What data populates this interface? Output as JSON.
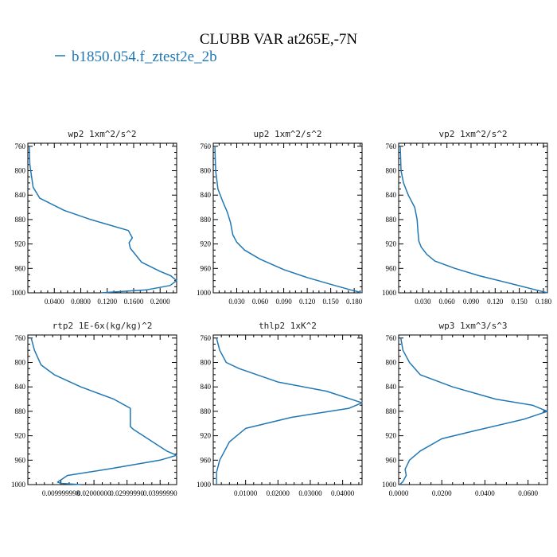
{
  "title": "CLUBB VAR at265E,-7N",
  "legend": {
    "label": "b1850.054.f_ztest2e_2b",
    "color": "#1f77b4"
  },
  "chart_data": [
    {
      "type": "line",
      "title": "wp2  1xm^2/s^2",
      "xlim": [
        0.0,
        0.225
      ],
      "ylim": [
        1000,
        755
      ],
      "y_inverted": true,
      "xticks": [
        0.04,
        0.08,
        0.12,
        0.16,
        0.2
      ],
      "xtick_labels": [
        "0.0400",
        "0.0800",
        "0.1200",
        "0.1600",
        "0.2000"
      ],
      "yticks": [
        760,
        800,
        840,
        880,
        920,
        960,
        1000
      ],
      "ytick_labels": [
        "760",
        "800",
        "840",
        "880",
        "920",
        "960",
        "1000"
      ],
      "series": [
        {
          "x": [
            0.002,
            0.003,
            0.008,
            0.018,
            0.055,
            0.095,
            0.152,
            0.158,
            0.153,
            0.155,
            0.172,
            0.2,
            0.216,
            0.225,
            0.215,
            0.18,
            0.11
          ],
          "y": [
            760,
            790,
            827,
            845,
            865,
            880,
            898,
            910,
            918,
            927,
            950,
            965,
            972,
            980,
            988,
            995,
            1000
          ]
        }
      ]
    },
    {
      "type": "line",
      "title": "up2  1xm^2/s^2",
      "xlim": [
        0.0,
        0.19
      ],
      "ylim": [
        1000,
        755
      ],
      "y_inverted": true,
      "xticks": [
        0.03,
        0.06,
        0.09,
        0.12,
        0.15,
        0.18
      ],
      "xtick_labels": [
        "0.030",
        "0.060",
        "0.090",
        "0.120",
        "0.150",
        "0.180"
      ],
      "yticks": [
        760,
        800,
        840,
        880,
        920,
        960,
        1000
      ],
      "ytick_labels": [
        "760",
        "800",
        "840",
        "880",
        "920",
        "960",
        "1000"
      ],
      "series": [
        {
          "x": [
            0.002,
            0.003,
            0.006,
            0.012,
            0.018,
            0.022,
            0.025,
            0.03,
            0.04,
            0.06,
            0.09,
            0.12,
            0.15,
            0.175,
            0.19
          ],
          "y": [
            760,
            800,
            830,
            850,
            868,
            885,
            905,
            917,
            930,
            945,
            962,
            975,
            986,
            995,
            1000
          ]
        }
      ]
    },
    {
      "type": "line",
      "title": "vp2  1xm^2/s^2",
      "xlim": [
        0.0,
        0.185
      ],
      "ylim": [
        1000,
        755
      ],
      "y_inverted": true,
      "xticks": [
        0.03,
        0.06,
        0.09,
        0.12,
        0.15,
        0.18
      ],
      "xtick_labels": [
        "0.030",
        "0.060",
        "0.090",
        "0.120",
        "0.150",
        "0.180"
      ],
      "yticks": [
        760,
        800,
        840,
        880,
        920,
        960,
        1000
      ],
      "ytick_labels": [
        "760",
        "800",
        "840",
        "880",
        "920",
        "960",
        "1000"
      ],
      "series": [
        {
          "x": [
            0.002,
            0.003,
            0.006,
            0.012,
            0.02,
            0.023,
            0.024,
            0.025,
            0.028,
            0.035,
            0.045,
            0.07,
            0.1,
            0.14,
            0.17,
            0.185
          ],
          "y": [
            760,
            800,
            820,
            840,
            860,
            880,
            900,
            915,
            925,
            937,
            948,
            960,
            972,
            985,
            995,
            1000
          ]
        }
      ]
    },
    {
      "type": "line",
      "title": "rtp2  1E-6x(kg/kg)^2",
      "xlim": [
        0.0,
        0.045
      ],
      "ylim": [
        1000,
        755
      ],
      "y_inverted": true,
      "xticks": [
        0.01,
        0.02,
        0.03,
        0.04
      ],
      "xtick_labels": [
        "0.009999998",
        "0.02000000",
        "0.02999990",
        "0.03999990"
      ],
      "yticks": [
        760,
        800,
        840,
        880,
        920,
        960,
        1000
      ],
      "ytick_labels": [
        "760",
        "800",
        "840",
        "880",
        "920",
        "960",
        "1000"
      ],
      "series": [
        {
          "x": [
            0.001,
            0.002,
            0.004,
            0.008,
            0.016,
            0.026,
            0.031,
            0.031,
            0.032,
            0.042,
            0.045,
            0.04,
            0.025,
            0.012,
            0.009,
            0.01,
            0.016
          ],
          "y": [
            760,
            780,
            804,
            820,
            840,
            860,
            875,
            905,
            910,
            945,
            952,
            960,
            974,
            985,
            996,
            998,
            1000
          ]
        }
      ]
    },
    {
      "type": "line",
      "title": "thlp2  1xK^2",
      "xlim": [
        0.0,
        0.046
      ],
      "ylim": [
        1000,
        755
      ],
      "y_inverted": true,
      "xticks": [
        0.01,
        0.02,
        0.03,
        0.04
      ],
      "xtick_labels": [
        "0.01000",
        "0.02000",
        "0.03000",
        "0.04000"
      ],
      "yticks": [
        760,
        800,
        840,
        880,
        920,
        960,
        1000
      ],
      "ytick_labels": [
        "760",
        "800",
        "840",
        "880",
        "920",
        "960",
        "1000"
      ],
      "series": [
        {
          "x": [
            0.001,
            0.002,
            0.004,
            0.008,
            0.02,
            0.035,
            0.046,
            0.042,
            0.024,
            0.01,
            0.005,
            0.002,
            0.001,
            0.001,
            0.001
          ],
          "y": [
            760,
            780,
            800,
            810,
            832,
            847,
            866,
            875,
            890,
            908,
            930,
            960,
            980,
            995,
            1000
          ]
        }
      ]
    },
    {
      "type": "line",
      "title": "wp3  1xm^3/s^3",
      "xlim": [
        0.0,
        0.069
      ],
      "ylim": [
        1000,
        755
      ],
      "y_inverted": true,
      "xticks": [
        0.0,
        0.02,
        0.04,
        0.06
      ],
      "xtick_labels": [
        "0.0000",
        "0.0200",
        "0.0400",
        "0.0600"
      ],
      "yticks": [
        760,
        800,
        840,
        880,
        920,
        960,
        1000
      ],
      "ytick_labels": [
        "760",
        "800",
        "840",
        "880",
        "920",
        "960",
        "1000"
      ],
      "series": [
        {
          "x": [
            0.001,
            0.002,
            0.005,
            0.01,
            0.025,
            0.045,
            0.062,
            0.069,
            0.058,
            0.035,
            0.02,
            0.01,
            0.005,
            0.003,
            0.0035,
            0.002,
            0.0005
          ],
          "y": [
            760,
            780,
            800,
            820,
            840,
            860,
            870,
            880,
            893,
            912,
            925,
            945,
            960,
            975,
            985,
            995,
            1000
          ]
        }
      ]
    }
  ]
}
